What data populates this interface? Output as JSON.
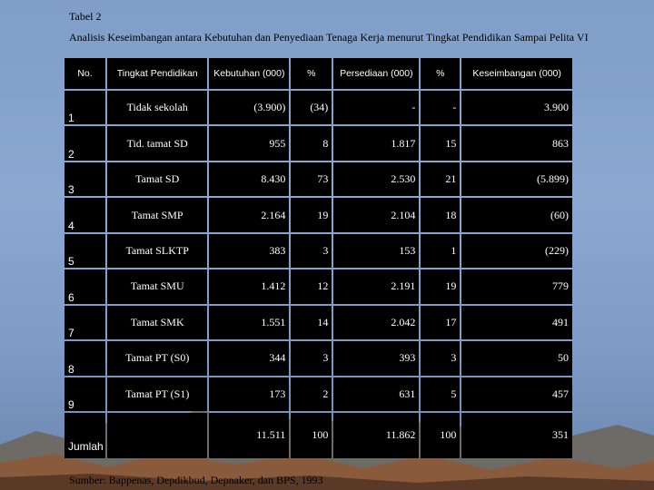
{
  "title": "Tabel 2",
  "subtitle": "Analisis Keseimbangan antara Kebutuhan dan Penyediaan Tenaga Kerja menurut Tingkat Pendidikan Sampai Pelita VI",
  "headers": [
    "No.",
    "Tingkat Pendidikan",
    "Kebutuhan (000)",
    "%",
    "Persediaan (000)",
    "%",
    "Keseimbangan (000)"
  ],
  "rows": [
    {
      "no": "1",
      "tingkat": "Tidak sekolah",
      "kebutuhan": "(3.900)",
      "pct1": "(34)",
      "persediaan": "-",
      "pct2": "-",
      "keseimbangan": "3.900"
    },
    {
      "no": "2",
      "tingkat": "Tid. tamat SD",
      "kebutuhan": "955",
      "pct1": "8",
      "persediaan": "1.817",
      "pct2": "15",
      "keseimbangan": "863"
    },
    {
      "no": "3",
      "tingkat": "Tamat SD",
      "kebutuhan": "8.430",
      "pct1": "73",
      "persediaan": "2.530",
      "pct2": "21",
      "keseimbangan": "(5.899)"
    },
    {
      "no": "4",
      "tingkat": "Tamat SMP",
      "kebutuhan": "2.164",
      "pct1": "19",
      "persediaan": "2.104",
      "pct2": "18",
      "keseimbangan": "(60)"
    },
    {
      "no": "5",
      "tingkat": "Tamat SLKTP",
      "kebutuhan": "383",
      "pct1": "3",
      "persediaan": "153",
      "pct2": "1",
      "keseimbangan": "(229)"
    },
    {
      "no": "6",
      "tingkat": "Tamat SMU",
      "kebutuhan": "1.412",
      "pct1": "12",
      "persediaan": "2.191",
      "pct2": "19",
      "keseimbangan": "779"
    },
    {
      "no": "7",
      "tingkat": "Tamat SMK",
      "kebutuhan": "1.551",
      "pct1": "14",
      "persediaan": "2.042",
      "pct2": "17",
      "keseimbangan": "491"
    },
    {
      "no": "8",
      "tingkat": "Tamat PT (S0)",
      "kebutuhan": "344",
      "pct1": "3",
      "persediaan": "393",
      "pct2": "3",
      "keseimbangan": "50"
    },
    {
      "no": "9",
      "tingkat": "Tamat PT (S1)",
      "kebutuhan": "173",
      "pct1": "2",
      "persediaan": "631",
      "pct2": "5",
      "keseimbangan": "457"
    },
    {
      "no": "Jumlah",
      "tingkat": "",
      "kebutuhan": "11.511",
      "pct1": "100",
      "persediaan": "11.862",
      "pct2": "100",
      "keseimbangan": "351"
    }
  ],
  "footer": "Sumber: Bappenas, Depdikbud, Depnaker, dan BPS, 1993",
  "colors": {
    "background": "#7f9ec8",
    "cell": "#000000",
    "text": "#ffffff"
  }
}
